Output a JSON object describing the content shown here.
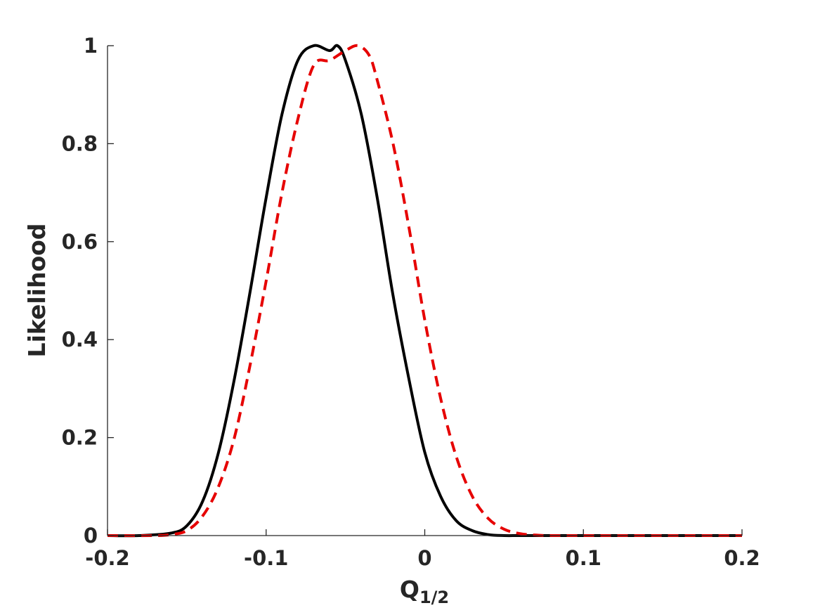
{
  "chart_data": {
    "type": "line",
    "xlabel": "Q",
    "xlabel_sub": "1/2",
    "ylabel": "Likelihood",
    "xlim": [
      -0.2,
      0.2
    ],
    "ylim": [
      0,
      1
    ],
    "grid": false,
    "x_ticks": [
      -0.2,
      -0.1,
      0,
      0.1,
      0.2
    ],
    "x_tick_labels": [
      "-0.2",
      "-0.1",
      "0",
      "0.1",
      "0.2"
    ],
    "y_ticks": [
      0,
      0.2,
      0.4,
      0.6,
      0.8,
      1
    ],
    "y_tick_labels": [
      "0",
      "0.2",
      "0.4",
      "0.6",
      "0.8",
      "1"
    ],
    "series": [
      {
        "color": "#000000",
        "style": "solid",
        "x": [
          -0.2,
          -0.18,
          -0.16,
          -0.15,
          -0.14,
          -0.13,
          -0.12,
          -0.11,
          -0.1,
          -0.09,
          -0.08,
          -0.07,
          -0.06,
          -0.055,
          -0.05,
          -0.04,
          -0.03,
          -0.02,
          -0.01,
          0,
          0.01,
          0.02,
          0.03,
          0.04,
          0.05,
          0.06,
          0.08,
          0.1,
          0.15,
          0.2
        ],
        "y": [
          0.0,
          0.0,
          0.005,
          0.02,
          0.07,
          0.17,
          0.32,
          0.5,
          0.69,
          0.86,
          0.97,
          1.0,
          0.99,
          1.0,
          0.97,
          0.86,
          0.69,
          0.49,
          0.32,
          0.17,
          0.08,
          0.03,
          0.01,
          0.002,
          0.0,
          0.0,
          0.0,
          0.0,
          0.0,
          0.0
        ]
      },
      {
        "color": "#e60000",
        "style": "dashed",
        "x": [
          -0.2,
          -0.17,
          -0.16,
          -0.15,
          -0.14,
          -0.13,
          -0.12,
          -0.11,
          -0.1,
          -0.09,
          -0.08,
          -0.07,
          -0.06,
          -0.05,
          -0.042,
          -0.035,
          -0.03,
          -0.02,
          -0.01,
          0,
          0.01,
          0.02,
          0.03,
          0.04,
          0.05,
          0.06,
          0.07,
          0.08,
          0.1,
          0.15,
          0.2
        ],
        "y": [
          0.0,
          0.0,
          0.002,
          0.01,
          0.04,
          0.1,
          0.2,
          0.35,
          0.52,
          0.7,
          0.85,
          0.96,
          0.97,
          0.99,
          1.0,
          0.98,
          0.93,
          0.8,
          0.63,
          0.44,
          0.28,
          0.16,
          0.08,
          0.035,
          0.013,
          0.004,
          0.001,
          0.0,
          0.0,
          0.0,
          0.0
        ]
      }
    ]
  }
}
